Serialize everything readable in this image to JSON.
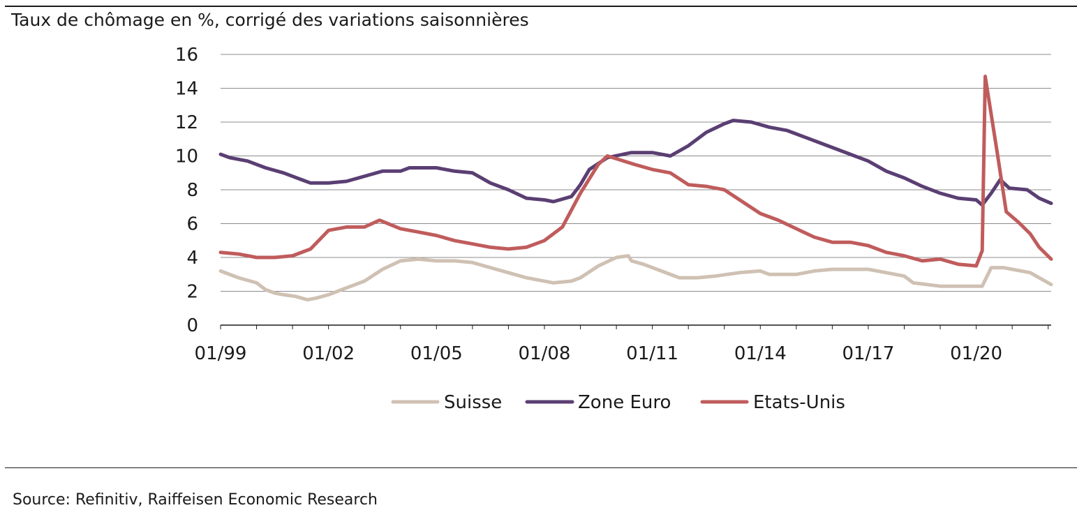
{
  "source": "Source: Refinitiv, Raiffeisen Economic Research",
  "chart_data": {
    "type": "line",
    "title": "Taux de chômage en %, corrigé des variations saisonnières",
    "xlabel": "",
    "ylabel": "",
    "x_range": [
      "1999-01",
      "2022-02"
    ],
    "x_ticks": [
      "01/99",
      "01/02",
      "01/05",
      "01/08",
      "01/11",
      "01/14",
      "01/17",
      "01/20"
    ],
    "ylim": [
      0,
      16
    ],
    "y_ticks": [
      0,
      2,
      4,
      6,
      8,
      10,
      12,
      14,
      16
    ],
    "grid": "horizontal",
    "legend_position": "bottom",
    "series": [
      {
        "name": "Suisse",
        "color": "#cfc1b3",
        "points": [
          [
            "1999-01",
            3.2
          ],
          [
            "1999-07",
            2.8
          ],
          [
            "2000-01",
            2.5
          ],
          [
            "2000-04",
            2.1
          ],
          [
            "2000-07",
            1.9
          ],
          [
            "2000-10",
            1.8
          ],
          [
            "2001-02",
            1.7
          ],
          [
            "2001-06",
            1.5
          ],
          [
            "2001-09",
            1.6
          ],
          [
            "2002-01",
            1.8
          ],
          [
            "2002-07",
            2.2
          ],
          [
            "2003-01",
            2.6
          ],
          [
            "2003-07",
            3.3
          ],
          [
            "2004-01",
            3.8
          ],
          [
            "2004-07",
            3.9
          ],
          [
            "2005-01",
            3.8
          ],
          [
            "2005-07",
            3.8
          ],
          [
            "2006-01",
            3.7
          ],
          [
            "2006-07",
            3.4
          ],
          [
            "2007-01",
            3.1
          ],
          [
            "2007-07",
            2.8
          ],
          [
            "2008-01",
            2.6
          ],
          [
            "2008-04",
            2.5
          ],
          [
            "2008-10",
            2.6
          ],
          [
            "2009-01",
            2.8
          ],
          [
            "2009-07",
            3.5
          ],
          [
            "2010-01",
            4.0
          ],
          [
            "2010-05",
            4.1
          ],
          [
            "2010-06",
            3.8
          ],
          [
            "2010-10",
            3.6
          ],
          [
            "2011-04",
            3.2
          ],
          [
            "2011-10",
            2.8
          ],
          [
            "2012-04",
            2.8
          ],
          [
            "2012-10",
            2.9
          ],
          [
            "2013-06",
            3.1
          ],
          [
            "2014-01",
            3.2
          ],
          [
            "2014-04",
            3.0
          ],
          [
            "2015-01",
            3.0
          ],
          [
            "2015-07",
            3.2
          ],
          [
            "2016-01",
            3.3
          ],
          [
            "2016-07",
            3.3
          ],
          [
            "2017-01",
            3.3
          ],
          [
            "2017-07",
            3.1
          ],
          [
            "2018-01",
            2.9
          ],
          [
            "2018-04",
            2.5
          ],
          [
            "2019-01",
            2.3
          ],
          [
            "2019-07",
            2.3
          ],
          [
            "2020-01",
            2.3
          ],
          [
            "2020-03",
            2.3
          ],
          [
            "2020-06",
            3.4
          ],
          [
            "2020-10",
            3.4
          ],
          [
            "2021-01",
            3.3
          ],
          [
            "2021-07",
            3.1
          ],
          [
            "2022-02",
            2.4
          ]
        ]
      },
      {
        "name": "Zone Euro",
        "color": "#5a3f73",
        "points": [
          [
            "1999-01",
            10.1
          ],
          [
            "1999-04",
            9.9
          ],
          [
            "1999-10",
            9.7
          ],
          [
            "2000-04",
            9.3
          ],
          [
            "2000-10",
            9.0
          ],
          [
            "2001-04",
            8.6
          ],
          [
            "2001-07",
            8.4
          ],
          [
            "2002-01",
            8.4
          ],
          [
            "2002-07",
            8.5
          ],
          [
            "2003-01",
            8.8
          ],
          [
            "2003-07",
            9.1
          ],
          [
            "2004-01",
            9.1
          ],
          [
            "2004-04",
            9.3
          ],
          [
            "2005-01",
            9.3
          ],
          [
            "2005-07",
            9.1
          ],
          [
            "2006-01",
            9.0
          ],
          [
            "2006-07",
            8.4
          ],
          [
            "2007-01",
            8.0
          ],
          [
            "2007-07",
            7.5
          ],
          [
            "2008-01",
            7.4
          ],
          [
            "2008-04",
            7.3
          ],
          [
            "2008-10",
            7.6
          ],
          [
            "2009-01",
            8.3
          ],
          [
            "2009-04",
            9.2
          ],
          [
            "2009-10",
            9.9
          ],
          [
            "2010-06",
            10.2
          ],
          [
            "2011-01",
            10.2
          ],
          [
            "2011-07",
            10.0
          ],
          [
            "2012-01",
            10.6
          ],
          [
            "2012-07",
            11.4
          ],
          [
            "2013-01",
            11.9
          ],
          [
            "2013-04",
            12.1
          ],
          [
            "2013-10",
            12.0
          ],
          [
            "2014-04",
            11.7
          ],
          [
            "2014-10",
            11.5
          ],
          [
            "2015-04",
            11.1
          ],
          [
            "2016-01",
            10.5
          ],
          [
            "2016-07",
            10.1
          ],
          [
            "2017-01",
            9.7
          ],
          [
            "2017-07",
            9.1
          ],
          [
            "2018-01",
            8.7
          ],
          [
            "2018-07",
            8.2
          ],
          [
            "2019-01",
            7.8
          ],
          [
            "2019-07",
            7.5
          ],
          [
            "2020-01",
            7.4
          ],
          [
            "2020-03",
            7.1
          ],
          [
            "2020-06",
            7.8
          ],
          [
            "2020-09",
            8.6
          ],
          [
            "2020-12",
            8.1
          ],
          [
            "2021-06",
            8.0
          ],
          [
            "2021-10",
            7.5
          ],
          [
            "2022-02",
            7.2
          ]
        ]
      },
      {
        "name": "Etats-Unis",
        "color": "#c05c5c",
        "points": [
          [
            "1999-01",
            4.3
          ],
          [
            "1999-07",
            4.2
          ],
          [
            "2000-01",
            4.0
          ],
          [
            "2000-07",
            4.0
          ],
          [
            "2001-01",
            4.1
          ],
          [
            "2001-07",
            4.5
          ],
          [
            "2002-01",
            5.6
          ],
          [
            "2002-07",
            5.8
          ],
          [
            "2003-01",
            5.8
          ],
          [
            "2003-06",
            6.2
          ],
          [
            "2004-01",
            5.7
          ],
          [
            "2004-07",
            5.5
          ],
          [
            "2005-01",
            5.3
          ],
          [
            "2005-07",
            5.0
          ],
          [
            "2006-01",
            4.8
          ],
          [
            "2006-07",
            4.6
          ],
          [
            "2007-01",
            4.5
          ],
          [
            "2007-07",
            4.6
          ],
          [
            "2008-01",
            5.0
          ],
          [
            "2008-07",
            5.8
          ],
          [
            "2009-01",
            7.8
          ],
          [
            "2009-07",
            9.5
          ],
          [
            "2009-10",
            10.0
          ],
          [
            "2010-07",
            9.5
          ],
          [
            "2011-01",
            9.2
          ],
          [
            "2011-07",
            9.0
          ],
          [
            "2012-01",
            8.3
          ],
          [
            "2012-07",
            8.2
          ],
          [
            "2013-01",
            8.0
          ],
          [
            "2013-07",
            7.3
          ],
          [
            "2014-01",
            6.6
          ],
          [
            "2014-07",
            6.2
          ],
          [
            "2015-01",
            5.7
          ],
          [
            "2015-07",
            5.2
          ],
          [
            "2016-01",
            4.9
          ],
          [
            "2016-07",
            4.9
          ],
          [
            "2017-01",
            4.7
          ],
          [
            "2017-07",
            4.3
          ],
          [
            "2018-01",
            4.1
          ],
          [
            "2018-07",
            3.8
          ],
          [
            "2019-01",
            3.9
          ],
          [
            "2019-07",
            3.6
          ],
          [
            "2020-01",
            3.5
          ],
          [
            "2020-03",
            4.4
          ],
          [
            "2020-04",
            14.7
          ],
          [
            "2020-08",
            10.2
          ],
          [
            "2020-11",
            6.7
          ],
          [
            "2021-03",
            6.1
          ],
          [
            "2021-07",
            5.4
          ],
          [
            "2021-10",
            4.6
          ],
          [
            "2022-02",
            3.9
          ]
        ]
      }
    ]
  }
}
